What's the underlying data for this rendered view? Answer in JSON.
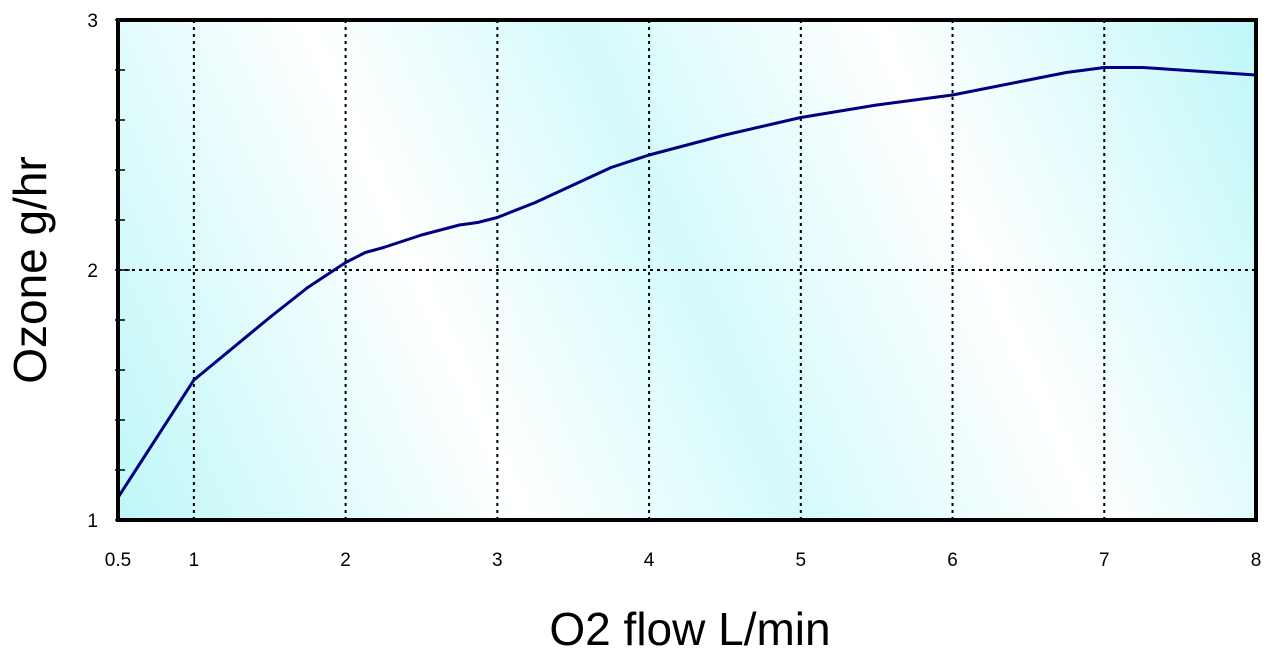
{
  "chart_data": {
    "type": "line",
    "title": "",
    "xlabel": "O2 flow L/min",
    "ylabel": "Ozone g/hr",
    "x_ticks": [
      "0.5",
      "1",
      "2",
      "3",
      "4",
      "5",
      "6",
      "7",
      "8"
    ],
    "y_ticks": [
      "1",
      "2",
      "3"
    ],
    "ylim": [
      1,
      3
    ],
    "grid": true,
    "series": [
      {
        "x": [
          0.5,
          1,
          1.5,
          1.75,
          2,
          2.13,
          2.25,
          2.5,
          2.75,
          2.87,
          3,
          3.25,
          3.5,
          3.75,
          4,
          4.5,
          5,
          5.5,
          5.75,
          6,
          6.25,
          6.5,
          6.75,
          7,
          7.25,
          7.5,
          7.75,
          8
        ],
        "y": [
          1.09,
          1.56,
          1.81,
          1.93,
          2.03,
          2.07,
          2.09,
          2.14,
          2.18,
          2.19,
          2.21,
          2.27,
          2.34,
          2.41,
          2.46,
          2.54,
          2.61,
          2.66,
          2.68,
          2.7,
          2.73,
          2.76,
          2.79,
          2.81,
          2.81,
          2.8,
          2.79,
          2.78
        ],
        "color": "#000080"
      }
    ],
    "colors": {
      "line": "#000080",
      "frame": "#000000",
      "plot_bg_light": "#ffffff",
      "plot_bg_tint": "#bff7f9"
    }
  }
}
